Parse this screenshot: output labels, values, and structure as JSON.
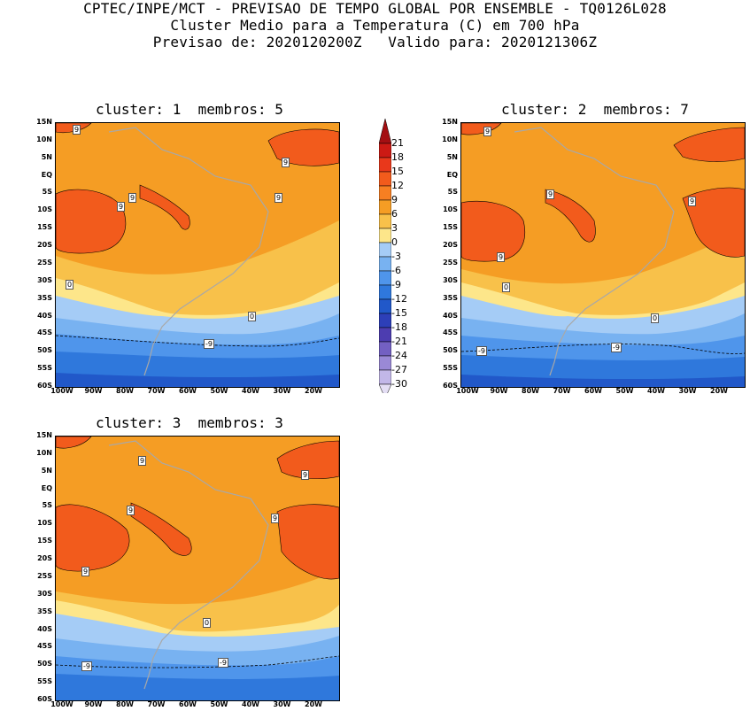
{
  "header": {
    "line1": "CPTEC/INPE/MCT - PREVISAO DE TEMPO GLOBAL POR ENSEMBLE - TQ0126L028",
    "line2": "Cluster Medio para a Temperatura (C) em 700 hPa",
    "line3": "Previsao de: 2020120200Z   Valido para: 2020121306Z"
  },
  "panels": [
    {
      "title": "cluster: 1  membros: 5"
    },
    {
      "title": "cluster: 2  membros: 7"
    },
    {
      "title": "cluster: 3  membros: 3"
    }
  ],
  "lat_labels": [
    "15N",
    "10N",
    "5N",
    "EQ",
    "5S",
    "10S",
    "15S",
    "20S",
    "25S",
    "30S",
    "35S",
    "40S",
    "45S",
    "50S",
    "55S",
    "60S"
  ],
  "lon_labels": [
    "100W",
    "90W",
    "80W",
    "70W",
    "60W",
    "50W",
    "40W",
    "30W",
    "20W"
  ],
  "contour_labels": {
    "nine": "9",
    "zero": "0",
    "minus_nine": "-9"
  },
  "colorbar": {
    "labels": [
      "21",
      "18",
      "15",
      "12",
      "9",
      "6",
      "3",
      "0",
      "-3",
      "-6",
      "-9",
      "-12",
      "-15",
      "-18",
      "-21",
      "-24",
      "-27",
      "-30"
    ],
    "colors": [
      "#a40f12",
      "#cc1a14",
      "#e9381b",
      "#f25b1c",
      "#f77f22",
      "#f59d24",
      "#f8c14a",
      "#fde68a",
      "#a5ccf6",
      "#78b2f1",
      "#4f95eb",
      "#2f78dc",
      "#2158c9",
      "#2d3fb8",
      "#4d3db0",
      "#7360c2",
      "#9a89d6",
      "#c2b7e8",
      "#e4def4"
    ]
  }
}
